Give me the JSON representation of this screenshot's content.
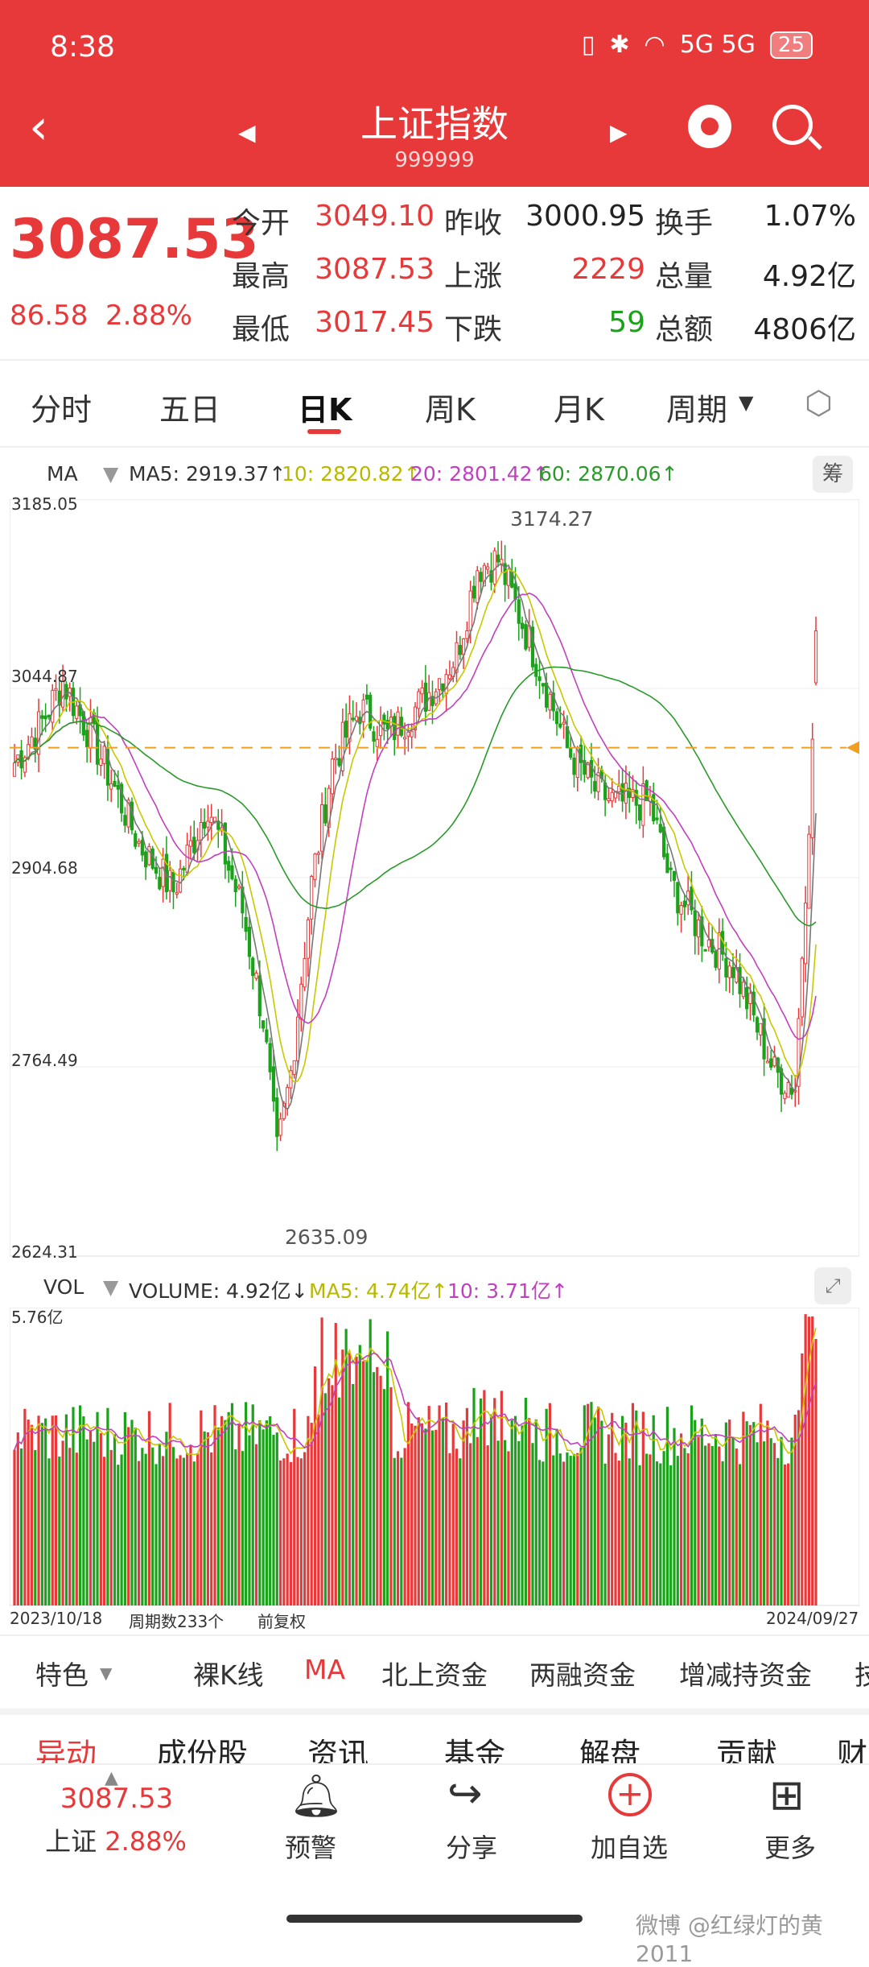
{
  "status": {
    "time": "8:38",
    "icons_label": "5G 5G",
    "battery": "25"
  },
  "header": {
    "title": "上证指数",
    "code": "999999"
  },
  "quote": {
    "price": "3087.53",
    "change": "86.58",
    "change_pct": "2.88%",
    "fields": [
      {
        "label": "今开",
        "value": "3049.10",
        "color": "#e8393a"
      },
      {
        "label": "昨收",
        "value": "3000.95",
        "color": "#222222"
      },
      {
        "label": "换手",
        "value": "1.07%",
        "color": "#222222"
      },
      {
        "label": "最高",
        "value": "3087.53",
        "color": "#e8393a"
      },
      {
        "label": "上涨",
        "value": "2229",
        "color": "#e8393a"
      },
      {
        "label": "总量",
        "value": "4.92亿",
        "color": "#222222"
      },
      {
        "label": "最低",
        "value": "3017.45",
        "color": "#e8393a"
      },
      {
        "label": "下跌",
        "value": "59",
        "color": "#1aa31a"
      },
      {
        "label": "总额",
        "value": "4806亿",
        "color": "#222222"
      }
    ]
  },
  "tabs": [
    "分时",
    "五日",
    "日K",
    "周K",
    "月K",
    "周期"
  ],
  "active_tab": "日K",
  "ma_legend": {
    "ma": "MA",
    "ma5": "MA5: 2919.37↑",
    "ma10": "10: 2820.82↑",
    "ma20": "20: 2801.42↑",
    "ma60": "60: 2870.06↑",
    "chou": "筹"
  },
  "vol_legend": {
    "vol": "VOL",
    "volume": "VOLUME: 4.92亿↓",
    "ma5": "MA5: 4.74亿↑",
    "ma10": "10: 3.71亿↑"
  },
  "price_axis": {
    "top": "3185.05",
    "upper_mid": "3044.87",
    "mid": "2904.68",
    "lower_mid": "2764.49",
    "bottom": "2624.31"
  },
  "vol_axis": {
    "top": "5.76亿"
  },
  "annotations": {
    "high": "3174.27",
    "low": "2635.09"
  },
  "footer_axis": {
    "start": "2023/10/18",
    "count": "周期数233个",
    "adjust": "前复权",
    "end": "2024/09/27"
  },
  "tool_row": [
    "特色",
    "裸K线",
    "MA",
    "北上资金",
    "两融资金",
    "增减持资金",
    "技"
  ],
  "info_tabs": [
    "异动",
    "成份股",
    "资讯",
    "基金",
    "解盘",
    "贡献",
    "财"
  ],
  "bottom_bar": {
    "price": "3087.53",
    "index_name": "上证",
    "index_pct": "2.88%",
    "alert": "预警",
    "share": "分享",
    "add": "加自选",
    "more": "更多"
  },
  "watermark": "微博 @红绿灯的黄2011",
  "chart_data": {
    "type": "candlestick",
    "x_start": "2023/10/18",
    "x_end": "2024/09/27",
    "periods": 233,
    "ylim": [
      2624.31,
      3185.05
    ],
    "last_close": 3087.53,
    "prev_close": 3000.95,
    "high_mark": 3174.27,
    "low_mark": 2635.09,
    "close_path": [
      [
        0,
        2990
      ],
      [
        8,
        3020
      ],
      [
        14,
        3050
      ],
      [
        24,
        3000
      ],
      [
        36,
        2930
      ],
      [
        46,
        2895
      ],
      [
        56,
        2960
      ],
      [
        66,
        2880
      ],
      [
        72,
        2800
      ],
      [
        76,
        2700
      ],
      [
        80,
        2760
      ],
      [
        86,
        2900
      ],
      [
        92,
        2990
      ],
      [
        100,
        3030
      ],
      [
        108,
        3010
      ],
      [
        118,
        3035
      ],
      [
        128,
        3070
      ],
      [
        134,
        3135
      ],
      [
        140,
        3140
      ],
      [
        146,
        3100
      ],
      [
        152,
        3060
      ],
      [
        160,
        3000
      ],
      [
        168,
        2970
      ],
      [
        174,
        2960
      ],
      [
        184,
        2960
      ],
      [
        190,
        2900
      ],
      [
        200,
        2860
      ],
      [
        208,
        2840
      ],
      [
        214,
        2800
      ],
      [
        220,
        2760
      ],
      [
        226,
        2750
      ],
      [
        229,
        2900
      ],
      [
        231,
        3000
      ],
      [
        232,
        3087.53
      ]
    ],
    "ma5_last": 2919.37,
    "ma10_last": 2820.82,
    "ma20_last": 2801.42,
    "ma60_last": 2870.06,
    "volume_max": "5.76亿",
    "volume_last": "4.92亿",
    "vol_ma5_last": "4.74亿",
    "vol_ma10_last": "3.71亿"
  }
}
